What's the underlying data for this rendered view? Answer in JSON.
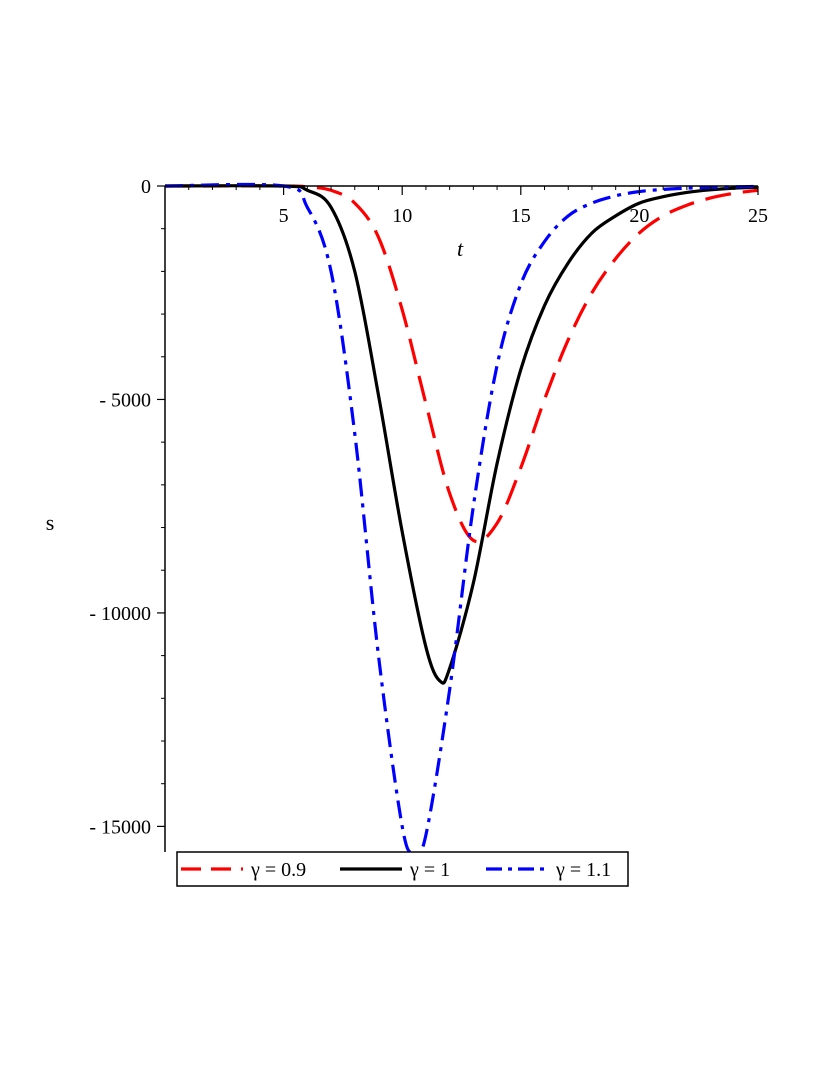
{
  "chart_data": {
    "type": "line",
    "title": "",
    "xlabel": "t",
    "ylabel": "s",
    "xlim": [
      0,
      25
    ],
    "ylim": [
      -15600,
      0
    ],
    "x_ticks": [
      5,
      10,
      15,
      20,
      25
    ],
    "y_ticks": [
      0,
      -5000,
      -10000,
      -15000
    ],
    "x_tick_labels": [
      "5",
      "10",
      "15",
      "20",
      "25"
    ],
    "y_tick_labels": [
      "0",
      "- 5000",
      "- 10000",
      "- 15000"
    ],
    "grid": false,
    "legend_position": "bottom",
    "series": [
      {
        "name": "γ = 0.9",
        "color": "#ff0000",
        "dash": "dash",
        "x": [
          0,
          5,
          6,
          7,
          8,
          9,
          10,
          11,
          12,
          13,
          14,
          15,
          16,
          17,
          18,
          19,
          20,
          21,
          22,
          23,
          24,
          25
        ],
        "y": [
          0,
          0,
          -20,
          -100,
          -400,
          -1200,
          -2900,
          -5100,
          -7200,
          -8300,
          -7900,
          -6600,
          -5000,
          -3600,
          -2500,
          -1700,
          -1100,
          -700,
          -450,
          -280,
          -170,
          -100
        ]
      },
      {
        "name": "γ = 1",
        "color": "#000000",
        "dash": "solid",
        "x": [
          0,
          5,
          6,
          7,
          8,
          9,
          10,
          11,
          11.6,
          12,
          13,
          14,
          15,
          16,
          17,
          18,
          19,
          20,
          21,
          22,
          23,
          24,
          25
        ],
        "y": [
          0,
          0,
          -100,
          -500,
          -2000,
          -4900,
          -8100,
          -10800,
          -11600,
          -11300,
          -9300,
          -6500,
          -4300,
          -2800,
          -1800,
          -1100,
          -700,
          -400,
          -250,
          -150,
          -90,
          -50,
          -30
        ]
      },
      {
        "name": "γ = 1.1",
        "color": "#0000ff",
        "dash": "dashdot",
        "x": [
          0,
          5,
          6,
          7,
          8,
          9,
          10,
          10.5,
          11,
          12,
          13,
          14,
          15,
          16,
          17,
          18,
          19,
          20,
          21,
          22,
          23,
          24,
          25
        ],
        "y": [
          0,
          0,
          -500,
          -2000,
          -5800,
          -11000,
          -15000,
          -15600,
          -15200,
          -11800,
          -7500,
          -4200,
          -2300,
          -1300,
          -700,
          -400,
          -230,
          -130,
          -80,
          -50,
          -30,
          -20,
          -10
        ]
      }
    ]
  }
}
